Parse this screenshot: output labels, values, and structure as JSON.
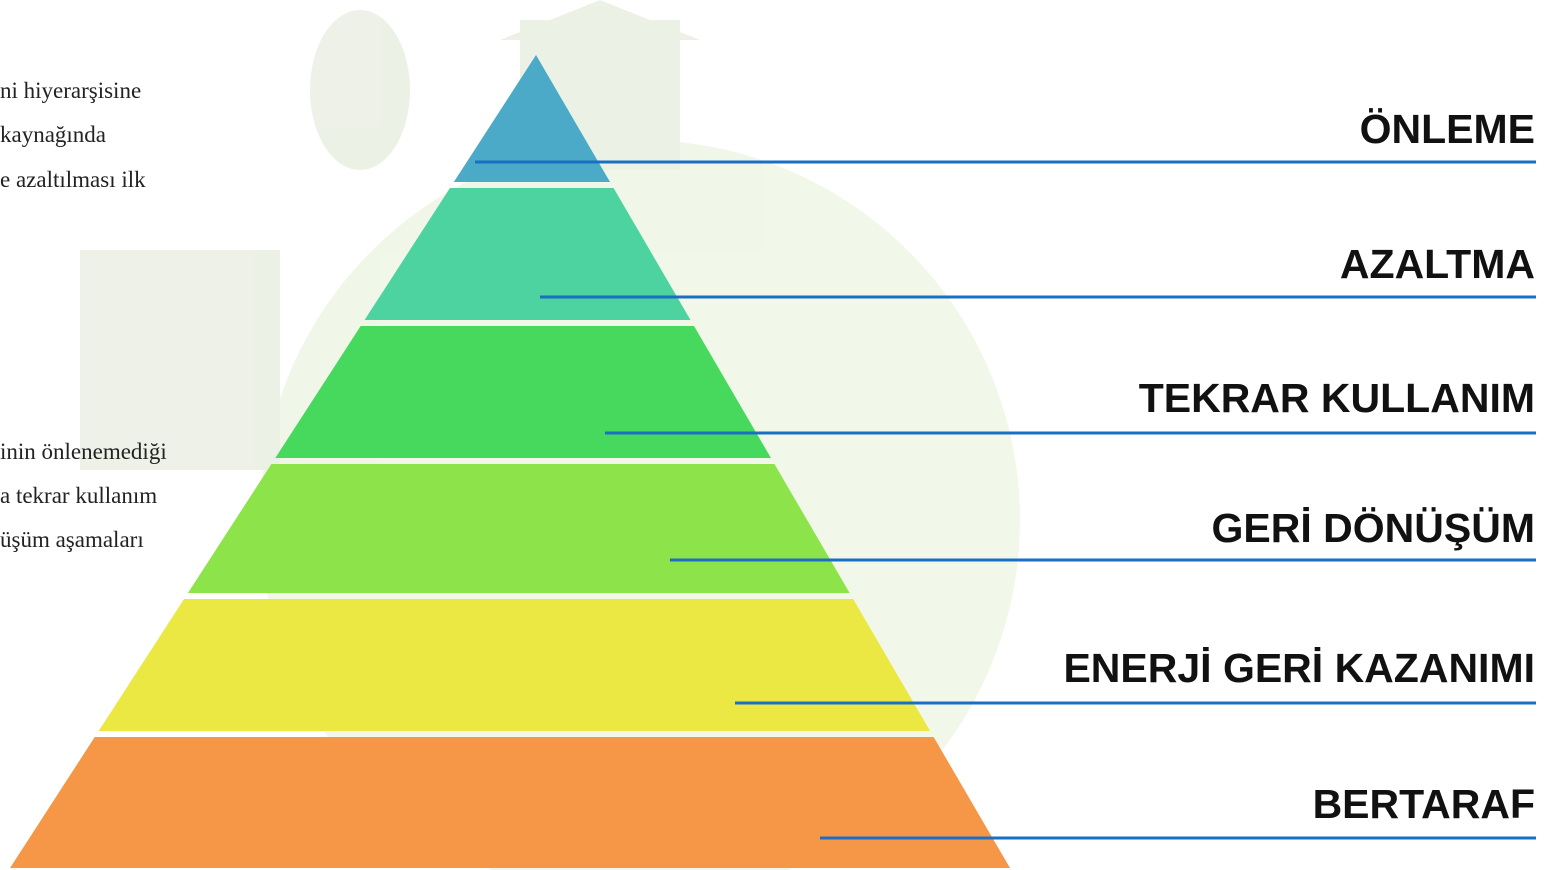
{
  "left_text": {
    "top_lines": [
      "ni hiyerarşisine",
      "kaynağında",
      "e azaltılması ilk"
    ],
    "bottom_lines": [
      "inin önlenemediği",
      "a tekrar kullanım",
      "üşüm aşamaları"
    ]
  },
  "levels": [
    {
      "label": "ÖNLEME"
    },
    {
      "label": "AZALTMA"
    },
    {
      "label": "TEKRAR KULLANIM"
    },
    {
      "label": "GERİ DÖNÜŞÜM"
    },
    {
      "label": "ENERJİ GERİ KAZANIMI"
    },
    {
      "label": "BERTARAF"
    }
  ]
}
